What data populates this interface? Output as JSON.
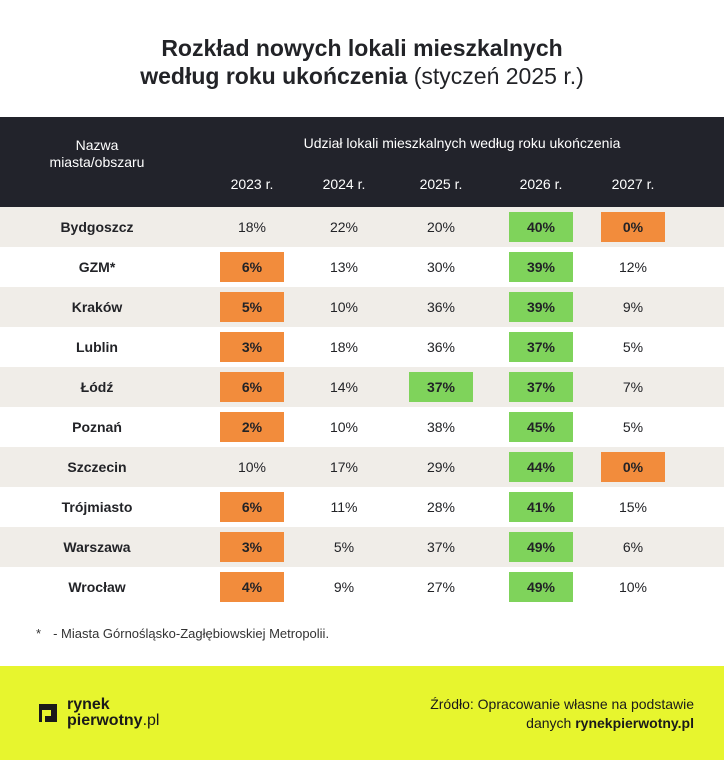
{
  "title": {
    "line1": "Rozkład nowych lokali mieszkalnych",
    "line2_bold": "według roku ukończenia",
    "line2_light": " (styczeń 2025 r.)"
  },
  "table": {
    "city_header": "Nazwa miasta/obszaru",
    "group_header": "Udział lokali mieszkalnych według roku ukończenia",
    "years": [
      "2023 r.",
      "2024 r.",
      "2025 r.",
      "2026 r.",
      "2027 r."
    ],
    "rows": [
      {
        "city": "Bydgoszcz",
        "values": [
          "18%",
          "22%",
          "20%",
          "40%",
          "0%"
        ],
        "highlight": [
          "",
          "",
          "",
          "max",
          "min"
        ]
      },
      {
        "city": "GZM*",
        "values": [
          "6%",
          "13%",
          "30%",
          "39%",
          "12%"
        ],
        "highlight": [
          "min",
          "",
          "",
          "max",
          ""
        ]
      },
      {
        "city": "Kraków",
        "values": [
          "5%",
          "10%",
          "36%",
          "39%",
          "9%"
        ],
        "highlight": [
          "min",
          "",
          "",
          "max",
          ""
        ]
      },
      {
        "city": "Lublin",
        "values": [
          "3%",
          "18%",
          "36%",
          "37%",
          "5%"
        ],
        "highlight": [
          "min",
          "",
          "",
          "max",
          ""
        ]
      },
      {
        "city": "Łódź",
        "values": [
          "6%",
          "14%",
          "37%",
          "37%",
          "7%"
        ],
        "highlight": [
          "min",
          "",
          "max",
          "max",
          ""
        ]
      },
      {
        "city": "Poznań",
        "values": [
          "2%",
          "10%",
          "38%",
          "45%",
          "5%"
        ],
        "highlight": [
          "min",
          "",
          "",
          "max",
          ""
        ]
      },
      {
        "city": "Szczecin",
        "values": [
          "10%",
          "17%",
          "29%",
          "44%",
          "0%"
        ],
        "highlight": [
          "",
          "",
          "",
          "max",
          "min"
        ]
      },
      {
        "city": "Trójmiasto",
        "values": [
          "6%",
          "11%",
          "28%",
          "41%",
          "15%"
        ],
        "highlight": [
          "min",
          "",
          "",
          "max",
          ""
        ]
      },
      {
        "city": "Warszawa",
        "values": [
          "3%",
          "5%",
          "37%",
          "49%",
          "6%"
        ],
        "highlight": [
          "min",
          "",
          "",
          "max",
          ""
        ]
      },
      {
        "city": "Wrocław",
        "values": [
          "4%",
          "9%",
          "27%",
          "49%",
          "10%"
        ],
        "highlight": [
          "min",
          "",
          "",
          "max",
          ""
        ]
      }
    ]
  },
  "footnote": {
    "mark": "*",
    "text": "- Miasta Górnośląsko-Zagłębiowskiej Metropolii."
  },
  "footer": {
    "logo_line1": "rynek",
    "logo_line2_a": "pierwotny",
    "logo_line2_b": ".pl",
    "source_line1": "Źródło: Opracowanie własne na podstawie",
    "source_line2_prefix": "danych ",
    "source_line2_bold": "rynekpierwotny.pl"
  },
  "colors": {
    "header_bg": "#22232b",
    "min_highlight": "#f28c3c",
    "max_highlight": "#7fd35b",
    "row_alt": "#f0ede8",
    "footer_bg": "#e7f52e"
  },
  "icons": {
    "logo": "rynekpierwotny-logo-icon"
  }
}
